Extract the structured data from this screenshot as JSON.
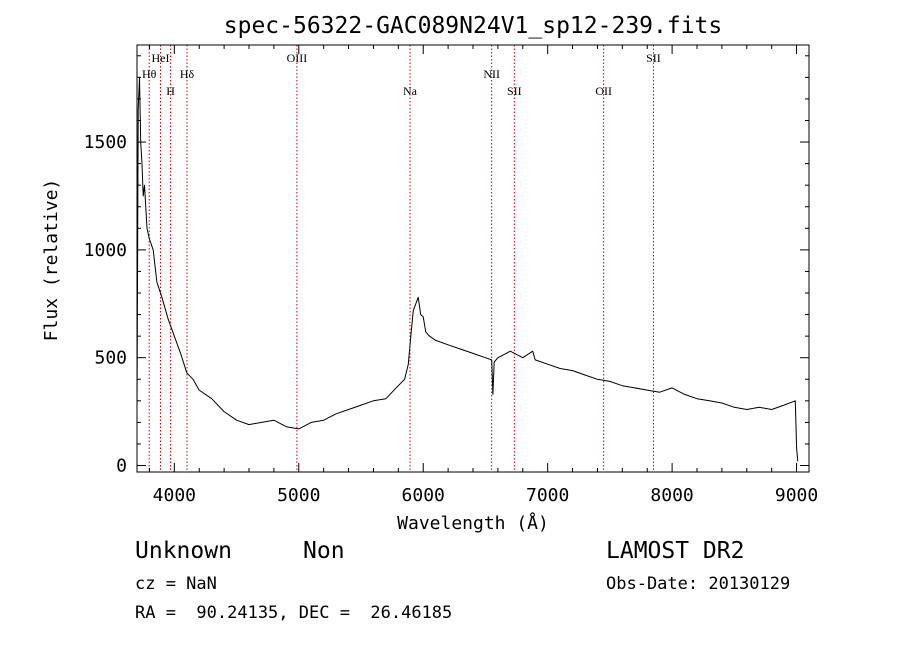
{
  "chart_data": {
    "type": "line",
    "title": "spec-56322-GAC089N24V1_sp12-239.fits",
    "xlabel": "Wavelength (Å)",
    "ylabel": "Flux (relative)",
    "xlim": [
      3700,
      9100
    ],
    "ylim": [
      -30,
      1950
    ],
    "x_ticks": [
      4000,
      5000,
      6000,
      7000,
      8000,
      9000
    ],
    "y_ticks": [
      0,
      500,
      1000,
      1500
    ],
    "line_color": "#000000",
    "marker_color": "#cc0000",
    "grid": false,
    "lines": [
      {
        "label": "Hθ",
        "wavelength": 3798,
        "label_row": 2
      },
      {
        "label": "HeI",
        "wavelength": 3889,
        "label_row": 1
      },
      {
        "label": "H",
        "wavelength": 3970,
        "label_row": 3
      },
      {
        "label": "Hδ",
        "wavelength": 4102,
        "label_row": 2
      },
      {
        "label": "OIII",
        "wavelength": 4985,
        "label_row": 1
      },
      {
        "label": "Na",
        "wavelength": 5894,
        "label_row": 3
      },
      {
        "label": "NII",
        "wavelength": 6550,
        "label_row": 2
      },
      {
        "label": "SII",
        "wavelength": 6732,
        "label_row": 3
      },
      {
        "label": "OII",
        "wavelength": 7450,
        "label_row": 3
      },
      {
        "label": "SII",
        "wavelength": 7850,
        "label_row": 1
      }
    ],
    "series": [
      {
        "x": [
          3700,
          3710,
          3720,
          3730,
          3740,
          3750,
          3760,
          3780,
          3800,
          3830,
          3860,
          3900,
          3950,
          4000,
          4050,
          4100,
          4150,
          4200,
          4300,
          4400,
          4500,
          4600,
          4700,
          4800,
          4900,
          5000,
          5100,
          5200,
          5300,
          5400,
          5500,
          5600,
          5700,
          5800,
          5850,
          5880,
          5900,
          5920,
          5940,
          5960,
          5980,
          6000,
          6020,
          6050,
          6100,
          6200,
          6300,
          6400,
          6500,
          6550,
          6560,
          6570,
          6600,
          6700,
          6800,
          6880,
          6900,
          7000,
          7100,
          7200,
          7300,
          7400,
          7500,
          7600,
          7700,
          7800,
          7900,
          8000,
          8100,
          8200,
          8300,
          8400,
          8500,
          8600,
          8700,
          8800,
          8900,
          8990,
          9000,
          9010
        ],
        "y": [
          250,
          1650,
          1800,
          1500,
          1400,
          1250,
          1300,
          1100,
          1050,
          1000,
          850,
          780,
          680,
          600,
          520,
          430,
          400,
          350,
          310,
          250,
          210,
          190,
          200,
          210,
          180,
          170,
          200,
          210,
          240,
          260,
          280,
          300,
          310,
          370,
          400,
          470,
          600,
          720,
          750,
          780,
          700,
          690,
          620,
          600,
          580,
          560,
          540,
          520,
          500,
          490,
          330,
          480,
          500,
          530,
          500,
          530,
          490,
          470,
          450,
          440,
          420,
          400,
          390,
          370,
          360,
          350,
          340,
          360,
          330,
          310,
          300,
          290,
          270,
          260,
          270,
          260,
          280,
          300,
          80,
          20
        ]
      }
    ]
  },
  "info": {
    "class_label": "Unknown",
    "subclass_label": "Non",
    "survey": "LAMOST DR2",
    "cz": "cz = NaN",
    "obs_date": "Obs-Date: 20130129",
    "coords": "RA =  90.24135, DEC =  26.46185"
  }
}
